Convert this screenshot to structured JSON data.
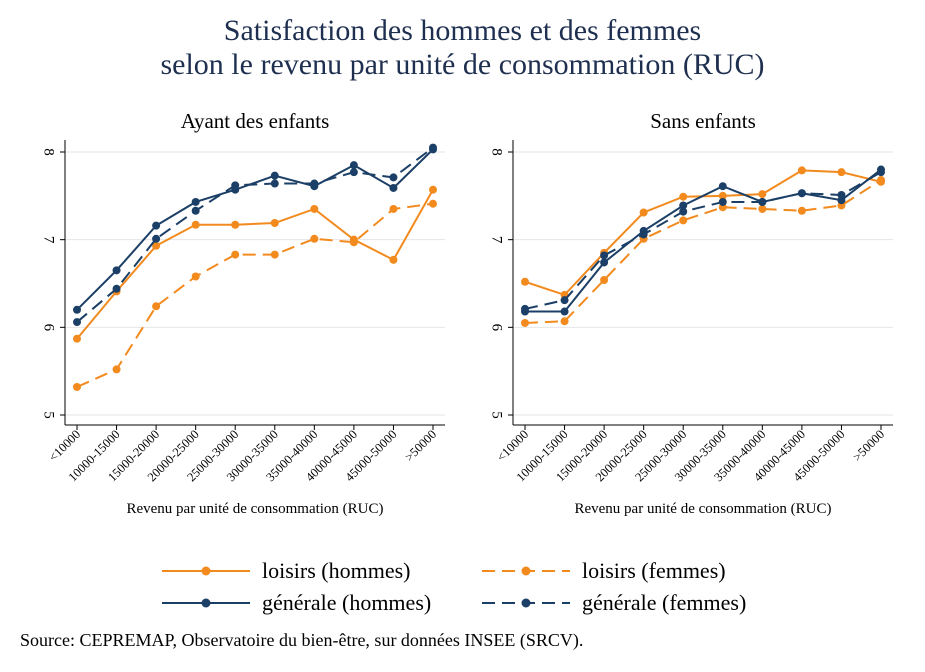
{
  "title": {
    "line1": "Satisfaction des hommes et des femmes",
    "line2": "selon le revenu par unité de consommation (RUC)"
  },
  "source": "Source: CEPREMAP, Observatoire du bien-être, sur données INSEE (SRCV).",
  "legend": [
    {
      "label": "loisirs (hommes)",
      "color": "#f28a1e",
      "dash": false
    },
    {
      "label": "loisirs (femmes)",
      "color": "#f28a1e",
      "dash": true
    },
    {
      "label": "générale (hommes)",
      "color": "#1b3f66",
      "dash": false
    },
    {
      "label": "générale (femmes)",
      "color": "#1b3f66",
      "dash": true
    }
  ],
  "chart_data": [
    {
      "type": "line",
      "title": "Ayant des enfants",
      "xlabel": "Revenu par unité de consommation (RUC)",
      "ylabel": "",
      "ylim": [
        5,
        8
      ],
      "yticks": [
        5,
        6,
        7,
        8
      ],
      "grid": true,
      "categories": [
        "<10000",
        "10000-15000",
        "15000-20000",
        "20000-25000",
        "25000-30000",
        "30000-35000",
        "35000-40000",
        "40000-45000",
        "45000-50000",
        ">50000"
      ],
      "series": [
        {
          "name": "loisirs (hommes)",
          "color": "#f28a1e",
          "dash": false,
          "values": [
            5.87,
            6.41,
            6.93,
            7.17,
            7.17,
            7.19,
            7.35,
            7.0,
            6.77,
            7.57
          ]
        },
        {
          "name": "loisirs (femmes)",
          "color": "#f28a1e",
          "dash": true,
          "values": [
            5.32,
            5.52,
            6.24,
            6.58,
            6.83,
            6.83,
            7.01,
            6.97,
            7.35,
            7.41
          ]
        },
        {
          "name": "générale (hommes)",
          "color": "#1b3f66",
          "dash": false,
          "values": [
            6.2,
            6.65,
            7.16,
            7.43,
            7.57,
            7.73,
            7.61,
            7.85,
            7.59,
            8.03
          ]
        },
        {
          "name": "générale (femmes)",
          "color": "#1b3f66",
          "dash": true,
          "values": [
            6.06,
            6.44,
            7.01,
            7.33,
            7.62,
            7.64,
            7.64,
            7.77,
            7.71,
            8.05
          ]
        }
      ]
    },
    {
      "type": "line",
      "title": "Sans enfants",
      "xlabel": "Revenu par unité de consommation (RUC)",
      "ylabel": "",
      "ylim": [
        5,
        8
      ],
      "yticks": [
        5,
        6,
        7,
        8
      ],
      "grid": true,
      "categories": [
        "<10000",
        "10000-15000",
        "15000-20000",
        "20000-25000",
        "25000-30000",
        "30000-35000",
        "35000-40000",
        "40000-45000",
        "45000-50000",
        ">50000"
      ],
      "series": [
        {
          "name": "loisirs (hommes)",
          "color": "#f28a1e",
          "dash": false,
          "values": [
            6.52,
            6.37,
            6.85,
            7.31,
            7.49,
            7.5,
            7.52,
            7.79,
            7.77,
            7.66
          ]
        },
        {
          "name": "loisirs (femmes)",
          "color": "#f28a1e",
          "dash": true,
          "values": [
            6.05,
            6.07,
            6.54,
            7.01,
            7.22,
            7.37,
            7.35,
            7.33,
            7.39,
            7.68
          ]
        },
        {
          "name": "générale (hommes)",
          "color": "#1b3f66",
          "dash": false,
          "values": [
            6.18,
            6.18,
            6.74,
            7.1,
            7.39,
            7.61,
            7.43,
            7.53,
            7.45,
            7.8
          ]
        },
        {
          "name": "générale (femmes)",
          "color": "#1b3f66",
          "dash": true,
          "values": [
            6.21,
            6.31,
            6.82,
            7.06,
            7.32,
            7.43,
            7.43,
            7.53,
            7.51,
            7.77
          ]
        }
      ]
    }
  ]
}
